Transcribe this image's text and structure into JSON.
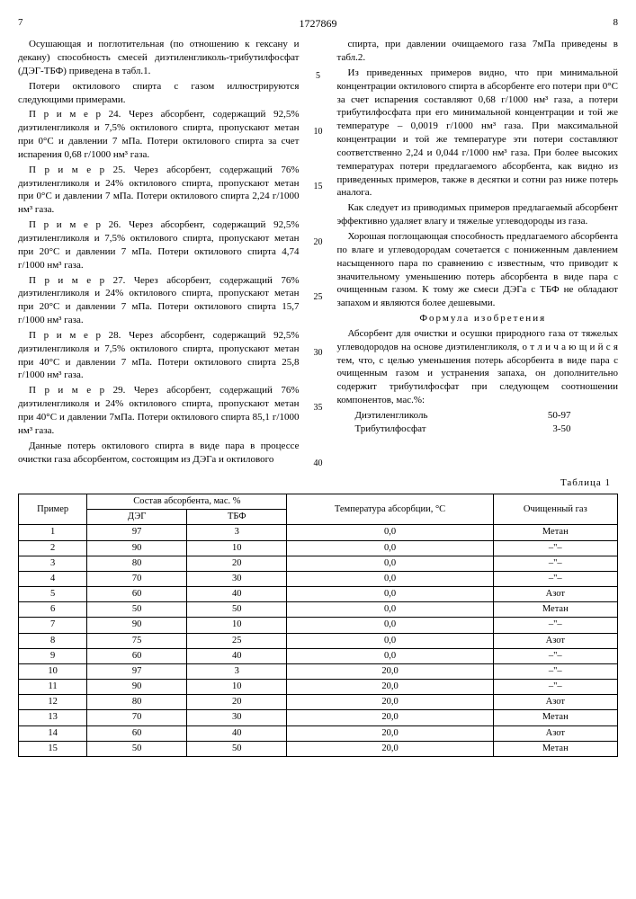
{
  "header": {
    "pageLeft": "7",
    "patent": "1727869",
    "pageRight": "8"
  },
  "leftColumn": {
    "p1": "Осушающая и поглотительная (по отношению к гексану и декану) способность смесей диэтиленгликоль-трибутилфосфат (ДЭГ-ТБФ) приведена в табл.1.",
    "p2": "Потери октилового спирта с газом иллюстрируются следующими примерами.",
    "p3": "П р и м е р 24. Через абсорбент, содержащий 92,5% диэтиленгликоля и 7,5% октилового спирта, пропускают метан при 0°С и давлении 7 мПа. Потери октилового спирта за счет испарения 0,68 г/1000 нм³ газа.",
    "p4": "П р и м е р 25. Через абсорбент, содержащий 76% диэтиленгликоля и 24% октилового спирта, пропускают метан при 0°С и давлении 7 мПа. Потери октилового спирта 2,24 г/1000 нм³ газа.",
    "p5": "П р и м е р 26. Через абсорбент, содержащий 92,5% диэтиленгликоля и 7,5% октилового спирта, пропускают метан при 20°С и давлении 7 мПа. Потери октилового спирта 4,74 г/1000 нм³ газа.",
    "p6": "П р и м е р 27. Через абсорбент, содержащий 76% диэтиленгликоля и 24% октилового спирта, пропускают метан при 20°С и давлении 7 мПа. Потери октилового спирта 15,7 г/1000 нм³ газа.",
    "p7": "П р и м е р 28. Через абсорбент, содержащий 92,5% диэтиленгликоля и 7,5% октилового спирта, пропускают метан при 40°С и давлении 7 мПа. Потери октилового спирта 25,8 г/1000 нм³ газа.",
    "p8": "П р и м е р 29. Через абсорбент, содержащий 76% диэтиленгликоля и 24% октилового спирта, пропускают метан при 40°С и давлении 7мПа. Потери октилового спирта 85,1 г/1000 нм³ газа.",
    "p9": "Данные потерь октилового спирта в виде пара в процессе очистки газа абсорбентом, состоящим из ДЭГа и октилового"
  },
  "rightColumn": {
    "p1": "спирта, при давлении очищаемого газа 7мПа приведены в табл.2.",
    "p2": "Из приведенных примеров видно, что при минимальной концентрации октилового спирта в абсорбенте его потери при 0°С за счет испарения составляют 0,68 г/1000 нм³ газа, а потери трибутилфосфата при его минимальной концентрации и той же температуре – 0,0019 г/1000 нм³ газа. При максимальной концентрации и той же температуре эти потери составляют соответственно 2,24 и 0,044 г/1000 нм³ газа. При более высоких температурах потери предлагаемого абсорбента, как видно из приведенных примеров, также в десятки и сотни раз ниже потерь аналога.",
    "p3": "Как следует из приводимых примеров предлагаемый абсорбент эффективно удаляет влагу и тяжелые углеводороды из газа.",
    "p4": "Хорошая поглощающая способность предлагаемого абсорбента по влаге и углеводородам сочетается с пониженным давлением насыщенного пара по сравнению с известным, что приводит к значительному уменьшению потерь абсорбента в виде пара с очищенным газом. К тому же смеси ДЭГа с ТБФ не обладают запахом и являются более дешевыми.",
    "formulaTitle": "Формула изобретения",
    "p5": "Абсорбент для очистки и осушки природного газа от тяжелых углеводородов на основе диэтиленгликоля, о т л и ч а ю щ и й с я тем, что, с целью уменьшения потерь абсорбента в виде пара с очищенным газом и устранения запаха, он дополнительно содержит трибутилфосфат при следующем соотношении компонентов, мас.%:",
    "ratio": [
      {
        "name": "Диэтиленгликоль",
        "value": "50-97"
      },
      {
        "name": "Трибутилфосфат",
        "value": "3-50"
      }
    ]
  },
  "markers": [
    "5",
    "10",
    "15",
    "20",
    "25",
    "30",
    "35",
    "40"
  ],
  "tableCaption": "Таблица 1",
  "table": {
    "columns": [
      "Пример",
      "Состав абсорбента, мас. %",
      "Температура абсорбции, °С",
      "Очищенный газ"
    ],
    "subcolumns": [
      "ДЭГ",
      "ТБФ"
    ],
    "rows": [
      [
        "1",
        "97",
        "3",
        "0,0",
        "Метан"
      ],
      [
        "2",
        "90",
        "10",
        "0,0",
        "–\"–"
      ],
      [
        "3",
        "80",
        "20",
        "0,0",
        "–\"–"
      ],
      [
        "4",
        "70",
        "30",
        "0,0",
        "–\"–"
      ],
      [
        "5",
        "60",
        "40",
        "0,0",
        "Азот"
      ],
      [
        "6",
        "50",
        "50",
        "0,0",
        "Метан"
      ],
      [
        "7",
        "90",
        "10",
        "0,0",
        "–\"–"
      ],
      [
        "8",
        "75",
        "25",
        "0,0",
        "Азот"
      ],
      [
        "9",
        "60",
        "40",
        "0,0",
        "–\"–"
      ],
      [
        "10",
        "97",
        "3",
        "20,0",
        "–\"–"
      ],
      [
        "11",
        "90",
        "10",
        "20,0",
        "–\"–"
      ],
      [
        "12",
        "80",
        "20",
        "20,0",
        "Азот"
      ],
      [
        "13",
        "70",
        "30",
        "20,0",
        "Метан"
      ],
      [
        "14",
        "60",
        "40",
        "20,0",
        "Азот"
      ],
      [
        "15",
        "50",
        "50",
        "20,0",
        "Метан"
      ]
    ]
  }
}
